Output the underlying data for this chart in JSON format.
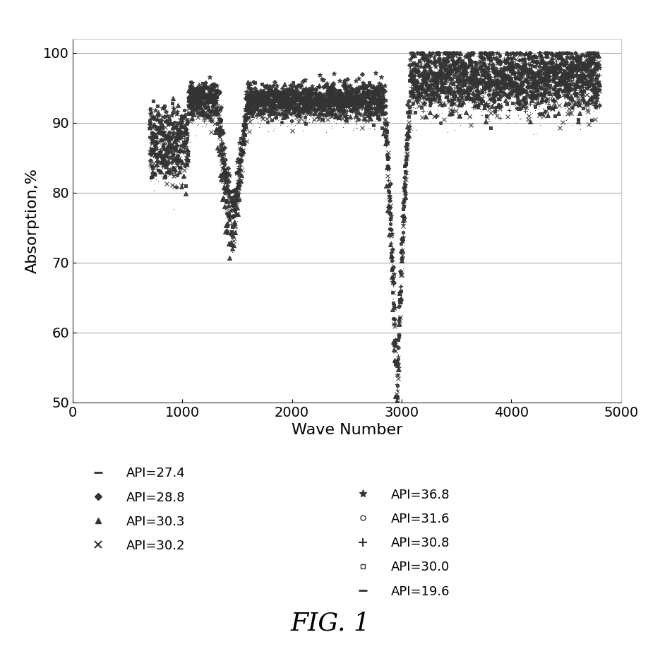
{
  "title": "FIG. 1",
  "xlabel": "Wave Number",
  "ylabel": "Absorption,%",
  "xlim": [
    0,
    5000
  ],
  "ylim": [
    50,
    102
  ],
  "yticks": [
    50,
    60,
    70,
    80,
    90,
    100
  ],
  "xticks": [
    0,
    1000,
    2000,
    3000,
    4000,
    5000
  ],
  "background_color": "#ffffff",
  "legend_left_labels": [
    "API=27.4",
    "API=28.8",
    "API=30.3",
    "API=30.2"
  ],
  "legend_left_markers": [
    "dash",
    "diamond",
    "triangle",
    "x"
  ],
  "legend_right_labels": [
    "API=36.8",
    "API=31.6",
    "API=30.8",
    "API=30.0",
    "API=19.6"
  ],
  "legend_right_markers": [
    "star",
    "circle",
    "plus",
    "square",
    "dash"
  ],
  "marker_color": "#333333",
  "grid_color": "#aaaaaa",
  "font_size_axis_label": 16,
  "font_size_tick": 14,
  "font_size_legend": 13,
  "font_size_title": 26
}
